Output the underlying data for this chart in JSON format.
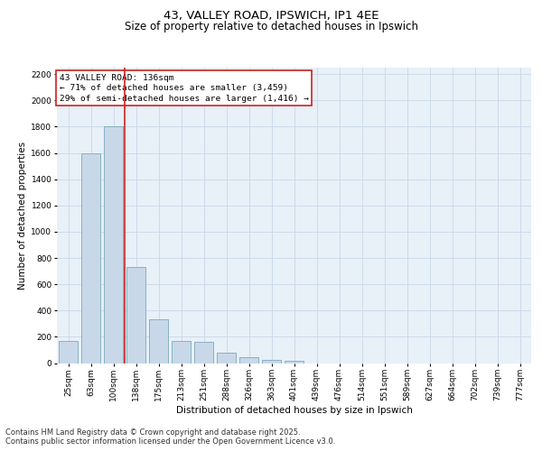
{
  "title_line1": "43, VALLEY ROAD, IPSWICH, IP1 4EE",
  "title_line2": "Size of property relative to detached houses in Ipswich",
  "xlabel": "Distribution of detached houses by size in Ipswich",
  "ylabel": "Number of detached properties",
  "categories": [
    "25sqm",
    "63sqm",
    "100sqm",
    "138sqm",
    "175sqm",
    "213sqm",
    "251sqm",
    "288sqm",
    "326sqm",
    "363sqm",
    "401sqm",
    "439sqm",
    "476sqm",
    "514sqm",
    "551sqm",
    "589sqm",
    "627sqm",
    "664sqm",
    "702sqm",
    "739sqm",
    "777sqm"
  ],
  "values": [
    168,
    1600,
    1800,
    730,
    330,
    165,
    160,
    80,
    42,
    25,
    15,
    0,
    0,
    0,
    0,
    0,
    0,
    0,
    0,
    0,
    0
  ],
  "bar_color": "#c8d8e8",
  "bar_edge_color": "#7aaabb",
  "vline_color": "#cc2222",
  "vline_x_index": 2.5,
  "annotation_text": "43 VALLEY ROAD: 136sqm\n← 71% of detached houses are smaller (3,459)\n29% of semi-detached houses are larger (1,416) →",
  "annotation_box_color": "#ffffff",
  "annotation_box_edge_color": "#cc2222",
  "ylim": [
    0,
    2250
  ],
  "yticks": [
    0,
    200,
    400,
    600,
    800,
    1000,
    1200,
    1400,
    1600,
    1800,
    2000,
    2200
  ],
  "grid_color": "#c8d8e8",
  "background_color": "#e8f0f8",
  "footer_line1": "Contains HM Land Registry data © Crown copyright and database right 2025.",
  "footer_line2": "Contains public sector information licensed under the Open Government Licence v3.0.",
  "title_fontsize": 9.5,
  "subtitle_fontsize": 8.5,
  "axis_label_fontsize": 7.5,
  "tick_fontsize": 6.5,
  "annotation_fontsize": 6.8,
  "footer_fontsize": 6.0
}
